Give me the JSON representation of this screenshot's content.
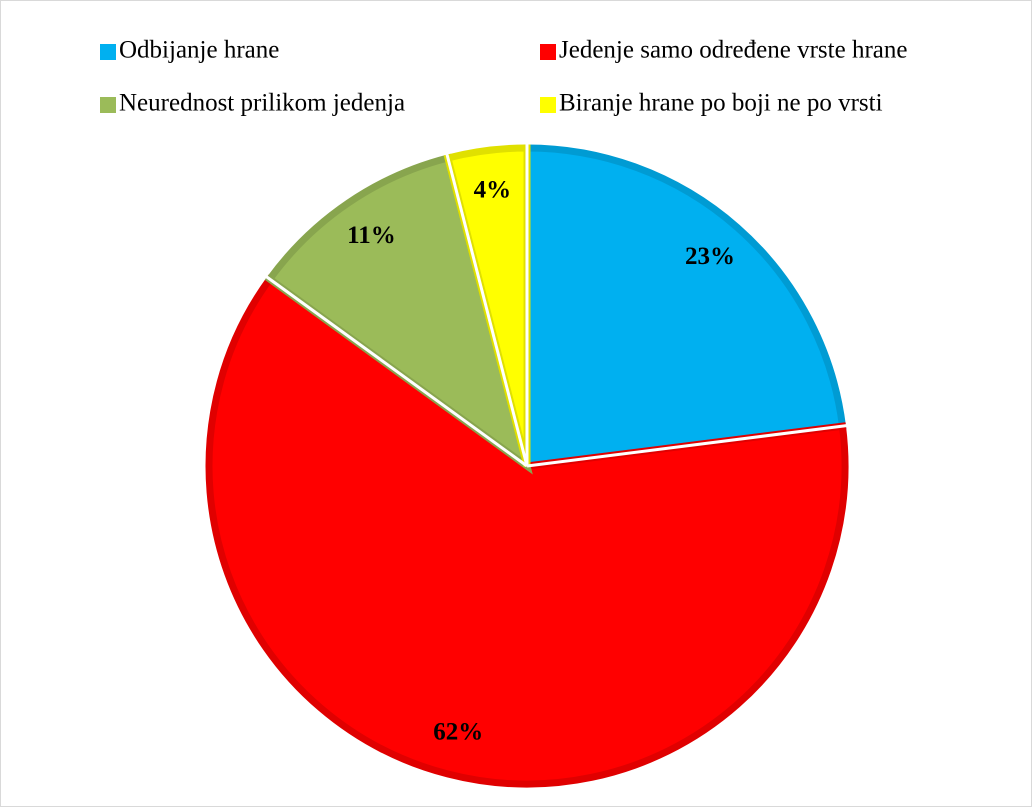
{
  "chart_data": {
    "type": "pie",
    "categories": [
      "Odbijanje hrane",
      "Jedenje samo određene vrste hrane",
      "Neurednost prilikom jedenja",
      "Biranje hrane po boji ne po vrsti"
    ],
    "values": [
      23,
      62,
      11,
      4
    ],
    "value_labels": [
      "23%",
      "62%",
      "11%",
      "4%"
    ],
    "colors": [
      "#00b0f0",
      "#ff0000",
      "#9bbb59",
      "#ffff00"
    ],
    "legend": "top"
  }
}
